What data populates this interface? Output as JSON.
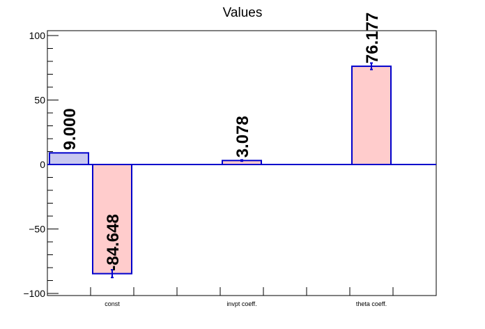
{
  "chart_data": {
    "type": "bar",
    "title": "Values",
    "xlabel": "",
    "ylabel": "",
    "ylim": [
      -102,
      102
    ],
    "yticks": [
      100,
      50,
      0,
      -50,
      -100
    ],
    "ytick_labels": [
      "100",
      "50",
      "0",
      "−50",
      "−100"
    ],
    "categories": [
      "const",
      "invpt coeff.",
      "theta coeff."
    ],
    "bars": [
      {
        "slot": 0,
        "value": 9.0,
        "label": "9.000",
        "error": 0.0,
        "fill": "#c8c8f0",
        "sign": "positive"
      },
      {
        "slot": 1,
        "value": -84.648,
        "label": "-84.648",
        "error": 3.0,
        "fill": "#ffcccc",
        "sign": "negative"
      },
      {
        "slot": 4,
        "value": 3.078,
        "label": "3.078",
        "error": 0.5,
        "fill": "#ffcccc",
        "sign": "negative"
      },
      {
        "slot": 7,
        "value": 76.177,
        "label": "76.177",
        "error": 2.5,
        "fill": "#ffcccc",
        "sign": "negative"
      }
    ],
    "category_slots": [
      1,
      4,
      7
    ],
    "num_slots": 9,
    "grid": false,
    "legend": "none",
    "colors": {
      "outline": "#0000cc",
      "zero_line": "#0000cc",
      "positive_fill": "#c8c8f0",
      "negative_fill": "#ffcccc",
      "axis": "#000000"
    }
  }
}
